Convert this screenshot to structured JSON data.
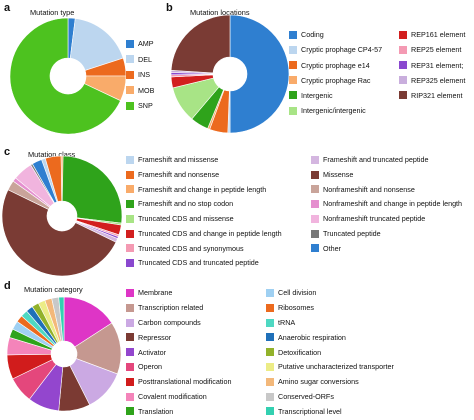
{
  "panels": {
    "a": {
      "label": "a",
      "title": "Mutation type"
    },
    "b": {
      "label": "b",
      "title": "Mutation locations"
    },
    "c": {
      "label": "c",
      "title": "Mutation class"
    },
    "d": {
      "label": "d",
      "title": "Mutation category"
    }
  },
  "chart_data": [
    {
      "type": "pie",
      "id": "a",
      "title": "Mutation type",
      "donut": true,
      "categories": [
        "AMP",
        "DEL",
        "INS",
        "MOB",
        "SNP"
      ],
      "values": [
        2,
        18,
        5,
        7,
        68
      ],
      "colors": [
        "#2f7fd0",
        "#bcd6ef",
        "#ec6a1e",
        "#f9ab6a",
        "#4dc21f"
      ]
    },
    {
      "type": "pie",
      "id": "b",
      "title": "Mutation locations",
      "donut": true,
      "categories": [
        "Coding",
        "Cryptic prophage CP4-57",
        "Cryptic prophage e14",
        "Cryptic prophage Rac",
        "Intergenic",
        "Intergenic/intergenic",
        "REP161 element",
        "REP25 element",
        "REP31 element;",
        "REP325 element",
        "RIP321 element"
      ],
      "values": [
        50,
        0.6,
        5,
        0.6,
        5,
        10,
        3,
        0.6,
        0.6,
        0.6,
        24
      ],
      "colors": [
        "#2f7fd0",
        "#bcd6ef",
        "#ec6a1e",
        "#f9ab6a",
        "#2fa31b",
        "#a8e486",
        "#d21f1f",
        "#f49ab3",
        "#8a48cf",
        "#c9aedd",
        "#7a3b34"
      ]
    },
    {
      "type": "pie",
      "id": "c",
      "title": "Mutation class",
      "donut": true,
      "categories": [
        "Frameshift and missense",
        "Frameshift and nonsense",
        "Frameshift and change in peptide length",
        "Frameshift and no stop codon",
        "Truncated CDS and missense",
        "Truncated CDS and change in peptide length",
        "Truncated CDS and synonymous",
        "Truncated CDS and truncated peptide",
        "Frameshift and truncated peptide",
        "Missense",
        "Nonframeshift and nonsense",
        "Nonframeshift and change in peptide length",
        "Nonframeshift truncated peptide",
        "Truncated peptide",
        "Other"
      ],
      "values": [
        1,
        4,
        0.5,
        25,
        0.5,
        2.5,
        0.5,
        0.5,
        1,
        47,
        2.5,
        1,
        5,
        0.5,
        2.5
      ],
      "colors": [
        "#bcd6ef",
        "#ec6a1e",
        "#f9ab6a",
        "#2fa31b",
        "#a8e486",
        "#d21f1f",
        "#f49ab3",
        "#8a48cf",
        "#d4b6e0",
        "#7a3b34",
        "#c9a49a",
        "#e58fcf",
        "#f1b4de",
        "#777777",
        "#2f7fd0"
      ]
    },
    {
      "type": "pie",
      "id": "d",
      "title": "Mutation category",
      "donut": true,
      "categories": [
        "Membrane",
        "Transcription related",
        "Carbon compounds",
        "Repressor",
        "Activator",
        "Operon",
        "Posttranslational modification",
        "Covalent modification",
        "Translation",
        "Cell division",
        "Ribosomes",
        "tRNA",
        "Anaerobic respiration",
        "Detoxification",
        "Putative uncharacterized transporter",
        "Amino sugar conversions",
        "Conserved-ORFs",
        "Transcriptional level"
      ],
      "values": [
        16,
        15,
        12,
        9,
        9,
        7.5,
        7,
        5,
        2.5,
        2.5,
        2,
        2,
        2,
        2,
        2,
        2,
        2,
        1.5
      ],
      "colors": [
        "#de35c6",
        "#c59890",
        "#cba9e3",
        "#7b3a33",
        "#9346ce",
        "#e4477c",
        "#d11c1c",
        "#f484ba",
        "#2fa31b",
        "#9fd0f2",
        "#ec6a1e",
        "#4ed8c2",
        "#1f70b9",
        "#92b22a",
        "#ecec86",
        "#f3b87a",
        "#c8c8c8",
        "#33d0b1"
      ]
    }
  ]
}
